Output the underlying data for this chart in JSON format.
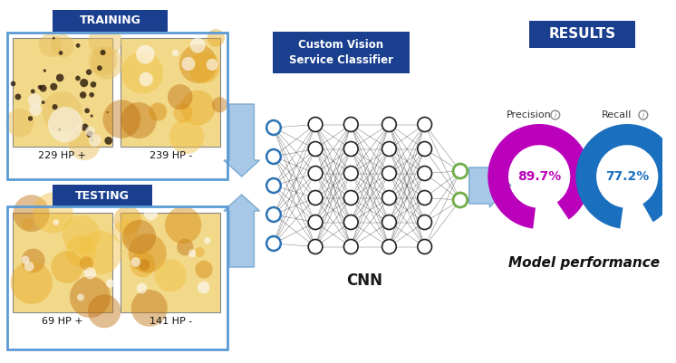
{
  "training_label": "TRAINING",
  "testing_label": "TESTING",
  "train_pos": "229 HP +",
  "train_neg": "239 HP -",
  "test_pos": "69 HP +",
  "test_neg": "141 HP -",
  "cnn_label": "CNN",
  "classifier_label": "Custom Vision\nService Classifier",
  "results_label": "RESULTS",
  "precision_label": "Precision",
  "recall_label": "Recall",
  "precision_value": 89.7,
  "recall_value": 77.2,
  "precision_text": "89.7%",
  "recall_text": "77.2%",
  "model_perf_label": "Model performance",
  "precision_color": "#BB00BB",
  "recall_color": "#1A6FBF",
  "label_box_color": "#1A3F8F",
  "outline_box_color": "#5B9BD5",
  "arrow_color": "#A8C8E8",
  "arrow_edge_color": "#7AABCF",
  "bg_color": "#FFFFFF",
  "node_color": "#FFFFFF",
  "node_edge": "#222222",
  "input_node_edge": "#2E74B5",
  "output_node_edge": "#70AD47",
  "cnn_label_color": "#1A1A1A"
}
